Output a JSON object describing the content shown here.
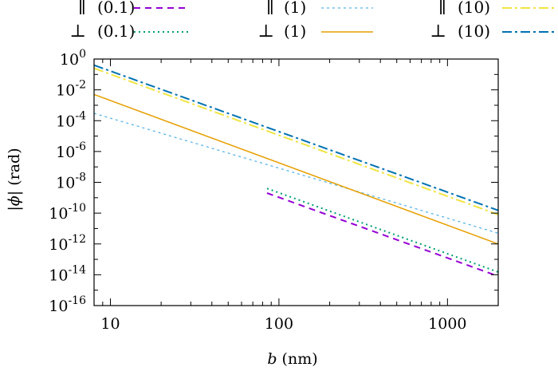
{
  "chart_data": {
    "type": "line",
    "xlabel_italic": "b",
    "xlabel_rest": " (nm)",
    "ylabel_pre": "|",
    "ylabel_phi": "ϕ",
    "ylabel_post": "| (rad)",
    "xscale": "log",
    "yscale": "log",
    "xlim": [
      8,
      2000
    ],
    "ylim": [
      1e-16,
      1
    ],
    "xticks": [
      {
        "value": 10,
        "label": "10"
      },
      {
        "value": 100,
        "label": "100"
      },
      {
        "value": 1000,
        "label": "1000"
      }
    ],
    "yticks": [
      {
        "value": 1,
        "base": "10",
        "exp": "0"
      },
      {
        "value": 0.01,
        "base": "10",
        "exp": "-2"
      },
      {
        "value": 0.0001,
        "base": "10",
        "exp": "-4"
      },
      {
        "value": 1e-06,
        "base": "10",
        "exp": "-6"
      },
      {
        "value": 1e-08,
        "base": "10",
        "exp": "-8"
      },
      {
        "value": 1e-10,
        "base": "10",
        "exp": "-10"
      },
      {
        "value": 1e-12,
        "base": "10",
        "exp": "-12"
      },
      {
        "value": 1e-14,
        "base": "10",
        "exp": "-14"
      },
      {
        "value": 1e-16,
        "base": "10",
        "exp": "-16"
      }
    ],
    "legend_placement": "top",
    "grid": false,
    "series": [
      {
        "symbol": "∥",
        "name": "(0.1)",
        "color": "#9400d3",
        "dash": "8,6",
        "width": 2,
        "x": [
          85,
          2000
        ],
        "y": [
          2e-09,
          8e-15
        ]
      },
      {
        "symbol": "⊥",
        "name": "(0.1)",
        "color": "#009e73",
        "dash": "2,4",
        "width": 2,
        "x": [
          85,
          2000
        ],
        "y": [
          4e-09,
          1.5e-14
        ]
      },
      {
        "symbol": "∥",
        "name": "(1)",
        "color": "#56b4e9",
        "dash": "3,4",
        "width": 1.3,
        "x": [
          8,
          2000
        ],
        "y": [
          0.0003,
          5e-12
        ]
      },
      {
        "symbol": "⊥",
        "name": "(1)",
        "color": "#e69f00",
        "dash": "",
        "width": 1.5,
        "x": [
          8,
          2000
        ],
        "y": [
          0.005,
          1e-12
        ]
      },
      {
        "symbol": "∥",
        "name": "(10)",
        "color": "#f0e442",
        "dash": "12,4,3,4",
        "width": 2,
        "x": [
          8,
          2000
        ],
        "y": [
          0.25,
          8e-11
        ]
      },
      {
        "symbol": "⊥",
        "name": "(10)",
        "color": "#0072b2",
        "dash": "12,4,3,4",
        "width": 2,
        "x": [
          8,
          2000
        ],
        "y": [
          0.4,
          1.5e-10
        ]
      }
    ]
  }
}
